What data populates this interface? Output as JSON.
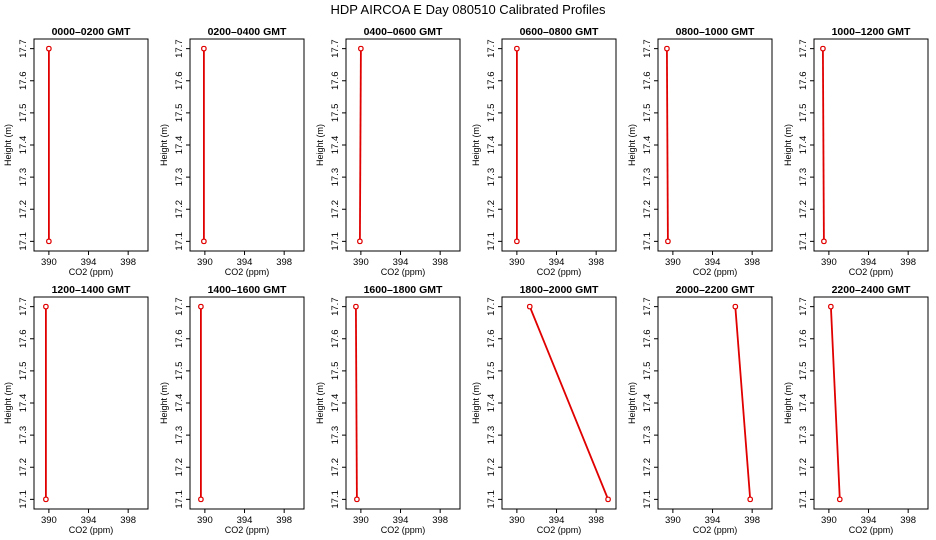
{
  "title": "HDP AIRCOA E  Day 080510  Calibrated Profiles",
  "chart_data": {
    "type": "line",
    "title": "HDP AIRCOA E  Day 080510  Calibrated Profiles",
    "xlabel": "CO2 (ppm)",
    "ylabel": "Height (m)",
    "xlim": [
      388.5,
      400
    ],
    "ylim": [
      17.07,
      17.73
    ],
    "x_ticks": [
      "390",
      "394",
      "398"
    ],
    "x_tick_values": [
      390,
      394,
      398
    ],
    "y_ticks": [
      "17.1",
      "17.2",
      "17.3",
      "17.4",
      "17.5",
      "17.6",
      "17.7"
    ],
    "y_tick_values": [
      17.1,
      17.2,
      17.3,
      17.4,
      17.5,
      17.6,
      17.7
    ],
    "line_color": "#e00000",
    "marker_color": "#e00000",
    "panels": [
      {
        "title": "0000–0200 GMT",
        "heights": [
          17.1,
          17.7
        ],
        "co2": [
          390.0,
          390.0
        ]
      },
      {
        "title": "0200–0400 GMT",
        "heights": [
          17.1,
          17.7
        ],
        "co2": [
          389.9,
          389.9
        ]
      },
      {
        "title": "0400–0600 GMT",
        "heights": [
          17.1,
          17.7
        ],
        "co2": [
          389.9,
          390.0
        ]
      },
      {
        "title": "0600–0800 GMT",
        "heights": [
          17.1,
          17.7
        ],
        "co2": [
          390.0,
          390.0
        ]
      },
      {
        "title": "0800–1000 GMT",
        "heights": [
          17.1,
          17.7
        ],
        "co2": [
          389.5,
          389.4
        ]
      },
      {
        "title": "1000–1200 GMT",
        "heights": [
          17.1,
          17.7
        ],
        "co2": [
          389.5,
          389.4
        ]
      },
      {
        "title": "1200–1400 GMT",
        "heights": [
          17.1,
          17.7
        ],
        "co2": [
          389.7,
          389.7
        ]
      },
      {
        "title": "1400–1600 GMT",
        "heights": [
          17.1,
          17.7
        ],
        "co2": [
          389.6,
          389.6
        ]
      },
      {
        "title": "1600–1800 GMT",
        "heights": [
          17.1,
          17.7
        ],
        "co2": [
          389.6,
          389.5
        ]
      },
      {
        "title": "1800–2000 GMT",
        "heights": [
          17.1,
          17.7
        ],
        "co2": [
          399.2,
          391.3
        ]
      },
      {
        "title": "2000–2200 GMT",
        "heights": [
          17.1,
          17.7
        ],
        "co2": [
          397.8,
          396.3
        ]
      },
      {
        "title": "2200–2400 GMT",
        "heights": [
          17.1,
          17.7
        ],
        "co2": [
          391.1,
          390.2
        ]
      }
    ]
  }
}
